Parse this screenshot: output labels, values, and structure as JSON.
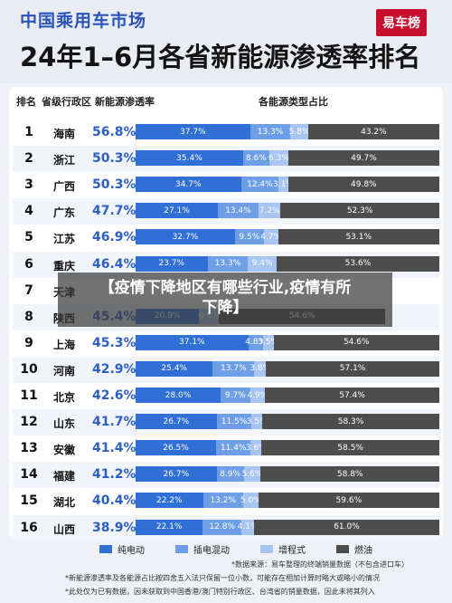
{
  "header": {
    "subtitle": "中国乘用车市场",
    "title": "24年1–6月各省新能源渗透率排名",
    "logo": "易车榜"
  },
  "overlay": {
    "line1": "【疫情下降地区有哪些行业,疫情有所",
    "line2": "下降】"
  },
  "colors": {
    "bev": "#2f6fd6",
    "phev": "#6e9fe6",
    "erev": "#a7c5f0",
    "ice": "#4d4d4d",
    "accent": "#2b53b8"
  },
  "chart_data": {
    "type": "bar",
    "title": "24年1–6月各省新能源渗透率排名",
    "column_headers": [
      "排名",
      "省级行政区",
      "新能源渗透率",
      "各能源类型占比"
    ],
    "series": [
      {
        "name": "纯电动",
        "values": [
          37.7,
          35.4,
          34.7,
          27.1,
          32.7,
          23.7,
          0,
          20.9,
          37.1,
          25.4,
          28.0,
          26.7,
          26.5,
          26.7,
          22.2,
          22.1
        ]
      },
      {
        "name": "插电混动",
        "values": [
          13.3,
          8.6,
          12.4,
          13.4,
          9.5,
          13.3,
          0,
          0,
          4.8,
          13.7,
          9.7,
          11.5,
          11.4,
          8.9,
          13.2,
          12.8
        ]
      },
      {
        "name": "增程式",
        "values": [
          5.8,
          6.3,
          3.1,
          7.2,
          4.7,
          9.4,
          0,
          6.6,
          3.5,
          3.8,
          4.9,
          3.5,
          3.6,
          5.6,
          5.0,
          4.1
        ]
      },
      {
        "name": "燃油",
        "values": [
          43.2,
          49.7,
          49.8,
          52.3,
          53.1,
          53.6,
          0,
          54.6,
          54.6,
          57.1,
          57.4,
          58.3,
          58.5,
          58.8,
          59.6,
          61.0
        ]
      }
    ],
    "rows": [
      {
        "rank": "1",
        "province": "海南",
        "rate": "56.8%",
        "segs": [
          "37.7%",
          "13.3%",
          "5.8%",
          "43.2%"
        ]
      },
      {
        "rank": "2",
        "province": "浙江",
        "rate": "50.3%",
        "segs": [
          "35.4%",
          "8.6%",
          "6.3%",
          "49.7%"
        ]
      },
      {
        "rank": "3",
        "province": "广西",
        "rate": "50.3%",
        "segs": [
          "34.7%",
          "12.4%",
          "3.1%",
          "49.8%"
        ]
      },
      {
        "rank": "4",
        "province": "广东",
        "rate": "47.7%",
        "segs": [
          "27.1%",
          "13.4%",
          "7.2%",
          "52.3%"
        ]
      },
      {
        "rank": "5",
        "province": "江苏",
        "rate": "46.9%",
        "segs": [
          "32.7%",
          "9.5%",
          "4.7%",
          "53.1%"
        ]
      },
      {
        "rank": "6",
        "province": "重庆",
        "rate": "46.4%",
        "segs": [
          "23.7%",
          "13.3%",
          "9.4%",
          "53.6%"
        ]
      },
      {
        "rank": "7",
        "province": "天津",
        "rate": "",
        "segs": [
          "",
          "",
          "",
          ""
        ]
      },
      {
        "rank": "8",
        "province": "陕西",
        "rate": "45.4%",
        "segs": [
          "20.9%",
          "",
          "6.6%",
          "54.6%"
        ]
      },
      {
        "rank": "9",
        "province": "上海",
        "rate": "45.3%",
        "segs": [
          "37.1%",
          "4.8%",
          "3.5%",
          "54.6%"
        ]
      },
      {
        "rank": "10",
        "province": "河南",
        "rate": "42.9%",
        "segs": [
          "25.4%",
          "13.7%",
          "3.8%",
          "57.1%"
        ]
      },
      {
        "rank": "11",
        "province": "北京",
        "rate": "42.6%",
        "segs": [
          "28.0%",
          "9.7%",
          "4.9%",
          "57.4%"
        ]
      },
      {
        "rank": "12",
        "province": "山东",
        "rate": "41.7%",
        "segs": [
          "26.7%",
          "11.5%",
          "3.5%",
          "58.3%"
        ]
      },
      {
        "rank": "13",
        "province": "安徽",
        "rate": "41.4%",
        "segs": [
          "26.5%",
          "11.4%",
          "3.6%",
          "58.5%"
        ]
      },
      {
        "rank": "14",
        "province": "福建",
        "rate": "41.2%",
        "segs": [
          "26.7%",
          "8.9%",
          "5.6%",
          "58.8%"
        ]
      },
      {
        "rank": "15",
        "province": "湖北",
        "rate": "40.4%",
        "segs": [
          "22.2%",
          "13.2%",
          "5.0%",
          "59.6%"
        ]
      },
      {
        "rank": "16",
        "province": "山西",
        "rate": "38.9%",
        "segs": [
          "22.1%",
          "12.8%",
          "4.1%",
          "61.0%"
        ]
      }
    ],
    "legend": [
      "纯电动",
      "插电混动",
      "增程式",
      "燃油"
    ],
    "legend_placement": "bottom"
  },
  "notes": [
    "*数据来源：易车整理的终端销量数据（不包含进口车）",
    "*新能源渗透率及各能源占比按四舍五入法只保留一位小数，可能存在相加计算时略大或略小的情况",
    "*此处仅为已有数据，因未获取到中国香港/澳门特别行政区、台湾省的销量数据，因此未将其列入"
  ]
}
